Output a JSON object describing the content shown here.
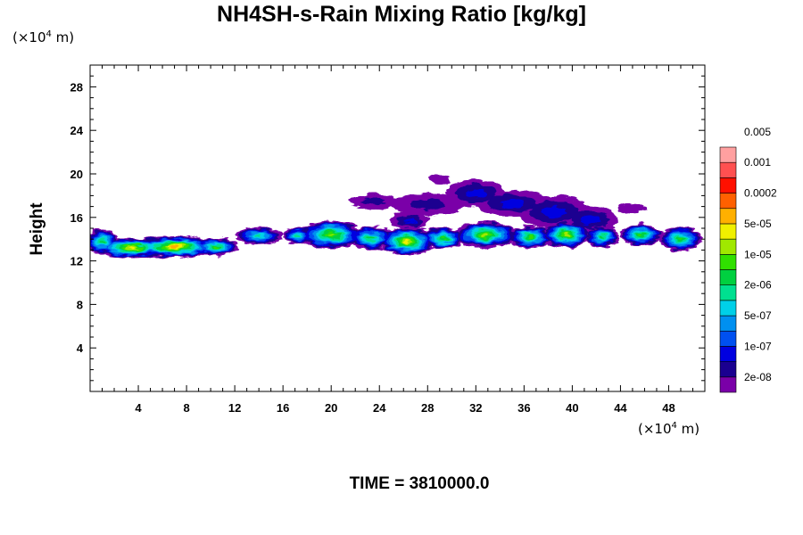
{
  "chart_data": {
    "type": "heatmap",
    "title": "NH4SH-s-Rain Mixing Ratio [kg/kg]",
    "ylabel": "Height",
    "x_unit": {
      "prefix": "(×10",
      "exp": "4",
      "suffix": " m)"
    },
    "y_unit": {
      "prefix": "(×10",
      "exp": "4",
      "suffix": " m)"
    },
    "xlim": [
      0,
      51
    ],
    "ylim": [
      0,
      30
    ],
    "x_ticks": [
      4,
      8,
      12,
      16,
      20,
      24,
      28,
      32,
      36,
      40,
      44,
      48
    ],
    "y_ticks": [
      4,
      8,
      12,
      16,
      20,
      24,
      28
    ],
    "colorbar": {
      "colors": [
        "#7a00a8",
        "#1a0090",
        "#0000e0",
        "#0050f0",
        "#0090f0",
        "#00d0e8",
        "#00e090",
        "#00d040",
        "#30e000",
        "#a0e800",
        "#f0f000",
        "#ffb000",
        "#ff6000",
        "#ff1000",
        "#ff5050",
        "#ffa0a0"
      ],
      "labels": [
        "2e-08",
        "1e-07",
        "5e-07",
        "2e-06",
        "1e-05",
        "5e-05",
        "0.0002",
        "0.001",
        "0.005"
      ]
    },
    "field_blobs": [
      {
        "x": 1,
        "y": 13.8,
        "rx": 1.3,
        "ry": 1.2,
        "level": 7
      },
      {
        "x": 3.5,
        "y": 13.2,
        "rx": 3.2,
        "ry": 0.9,
        "level": 10
      },
      {
        "x": 7,
        "y": 13.3,
        "rx": 3.3,
        "ry": 1.0,
        "level": 11
      },
      {
        "x": 10.5,
        "y": 13.3,
        "rx": 1.8,
        "ry": 0.8,
        "level": 8
      },
      {
        "x": 14,
        "y": 14.3,
        "rx": 2.0,
        "ry": 0.8,
        "level": 6
      },
      {
        "x": 17.2,
        "y": 14.3,
        "rx": 1.2,
        "ry": 0.8,
        "level": 6
      },
      {
        "x": 20,
        "y": 14.4,
        "rx": 2.6,
        "ry": 1.3,
        "level": 9
      },
      {
        "x": 23.3,
        "y": 14.1,
        "rx": 1.8,
        "ry": 1.1,
        "level": 7
      },
      {
        "x": 26.3,
        "y": 13.8,
        "rx": 2.3,
        "ry": 1.3,
        "level": 10
      },
      {
        "x": 29.3,
        "y": 14.1,
        "rx": 1.7,
        "ry": 1.0,
        "level": 8
      },
      {
        "x": 32.8,
        "y": 14.4,
        "rx": 2.6,
        "ry": 1.2,
        "level": 9
      },
      {
        "x": 36.5,
        "y": 14.2,
        "rx": 1.8,
        "ry": 1.0,
        "level": 8
      },
      {
        "x": 39.5,
        "y": 14.4,
        "rx": 2.0,
        "ry": 1.2,
        "level": 9
      },
      {
        "x": 42.5,
        "y": 14.2,
        "rx": 1.4,
        "ry": 1.0,
        "level": 7
      },
      {
        "x": 45.7,
        "y": 14.4,
        "rx": 1.7,
        "ry": 1.0,
        "level": 8
      },
      {
        "x": 49,
        "y": 14.0,
        "rx": 1.8,
        "ry": 1.1,
        "level": 8
      },
      {
        "x": 23.5,
        "y": 17.5,
        "rx": 2.0,
        "ry": 0.7,
        "level": 1
      },
      {
        "x": 28,
        "y": 17.2,
        "rx": 3.0,
        "ry": 1.0,
        "level": 1
      },
      {
        "x": 32,
        "y": 18.2,
        "rx": 2.5,
        "ry": 1.3,
        "level": 2
      },
      {
        "x": 35,
        "y": 17.3,
        "rx": 3.0,
        "ry": 1.2,
        "level": 2
      },
      {
        "x": 38.5,
        "y": 16.5,
        "rx": 3.0,
        "ry": 1.5,
        "level": 2
      },
      {
        "x": 41.5,
        "y": 15.8,
        "rx": 2.3,
        "ry": 1.2,
        "level": 2
      },
      {
        "x": 29,
        "y": 19.5,
        "rx": 0.9,
        "ry": 0.4,
        "level": 0
      },
      {
        "x": 45,
        "y": 16.8,
        "rx": 1.2,
        "ry": 0.4,
        "level": 0
      },
      {
        "x": 26.5,
        "y": 15.7,
        "rx": 1.6,
        "ry": 0.8,
        "level": 2
      }
    ]
  },
  "time_label": "TIME = 3810000.0"
}
